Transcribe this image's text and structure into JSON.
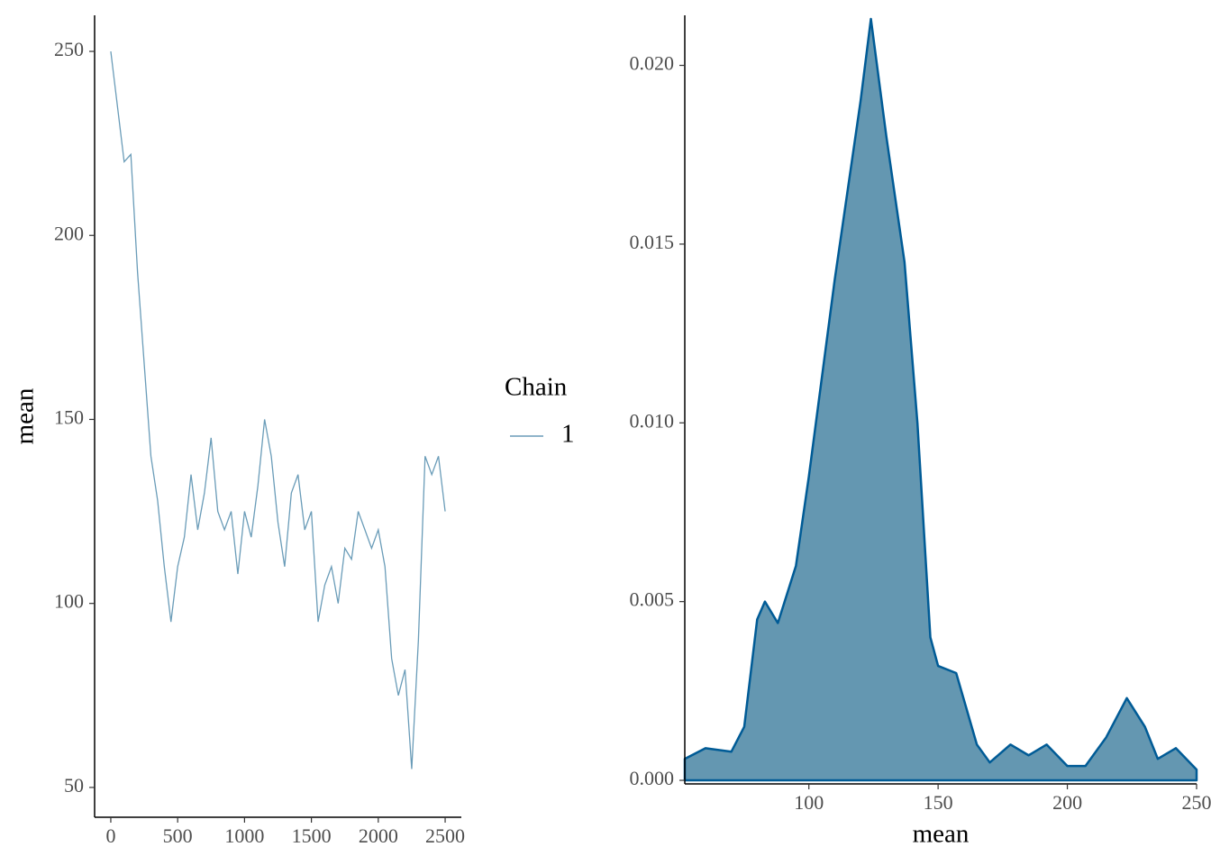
{
  "chart_data": [
    {
      "type": "line",
      "y_label": "mean",
      "legend_title": "Chain",
      "x": [
        0,
        50,
        100,
        150,
        200,
        250,
        300,
        350,
        400,
        450,
        500,
        550,
        600,
        650,
        700,
        750,
        800,
        850,
        900,
        950,
        1000,
        1050,
        1100,
        1150,
        1200,
        1250,
        1300,
        1350,
        1400,
        1450,
        1500,
        1550,
        1600,
        1650,
        1700,
        1750,
        1800,
        1850,
        1900,
        1950,
        2000,
        2050,
        2100,
        2150,
        2200,
        2250,
        2300,
        2350,
        2400,
        2450,
        2500
      ],
      "series": [
        {
          "name": "1",
          "color": "#6a9cb8",
          "values": [
            250,
            235,
            220,
            222,
            190,
            165,
            140,
            128,
            110,
            95,
            110,
            118,
            135,
            120,
            130,
            145,
            125,
            120,
            125,
            108,
            125,
            118,
            132,
            150,
            140,
            122,
            110,
            130,
            135,
            120,
            125,
            95,
            105,
            110,
            100,
            115,
            112,
            125,
            120,
            115,
            120,
            110,
            85,
            75,
            82,
            55,
            90,
            140,
            135,
            140,
            125
          ]
        }
      ],
      "xlim": [
        -121,
        2621
      ],
      "xticks": [
        0,
        500,
        1000,
        1500,
        2000,
        2500
      ],
      "ylim": [
        41.9,
        259.8
      ],
      "yticks": [
        50,
        100,
        150,
        200,
        250
      ]
    },
    {
      "type": "area",
      "x_label": "mean",
      "x": [
        52,
        60,
        70,
        75,
        80,
        83,
        88,
        95,
        100,
        110,
        120,
        124,
        130,
        137,
        142,
        147,
        150,
        157,
        165,
        170,
        178,
        185,
        192,
        200,
        207,
        215,
        223,
        230,
        235,
        242,
        250
      ],
      "values": [
        0.0006,
        0.0009,
        0.0008,
        0.0015,
        0.0045,
        0.005,
        0.0044,
        0.006,
        0.0085,
        0.014,
        0.019,
        0.0213,
        0.018,
        0.0145,
        0.01,
        0.004,
        0.0032,
        0.003,
        0.001,
        0.0005,
        0.001,
        0.0007,
        0.001,
        0.0004,
        0.0004,
        0.0012,
        0.0023,
        0.0015,
        0.0006,
        0.0009,
        0.0003
      ],
      "color": "#6497b1",
      "line_color": "#005b96",
      "xlim": [
        52,
        250
      ],
      "xticks": [
        100,
        150,
        200,
        250
      ],
      "ylim": [
        -0.0001,
        0.0214
      ],
      "yticks": [
        {
          "value": 0,
          "label": "0.000"
        },
        {
          "value": 0.005,
          "label": "0.005"
        },
        {
          "value": 0.01,
          "label": "0.010"
        },
        {
          "value": 0.015,
          "label": "0.015"
        },
        {
          "value": 0.02,
          "label": "0.020"
        }
      ]
    }
  ]
}
